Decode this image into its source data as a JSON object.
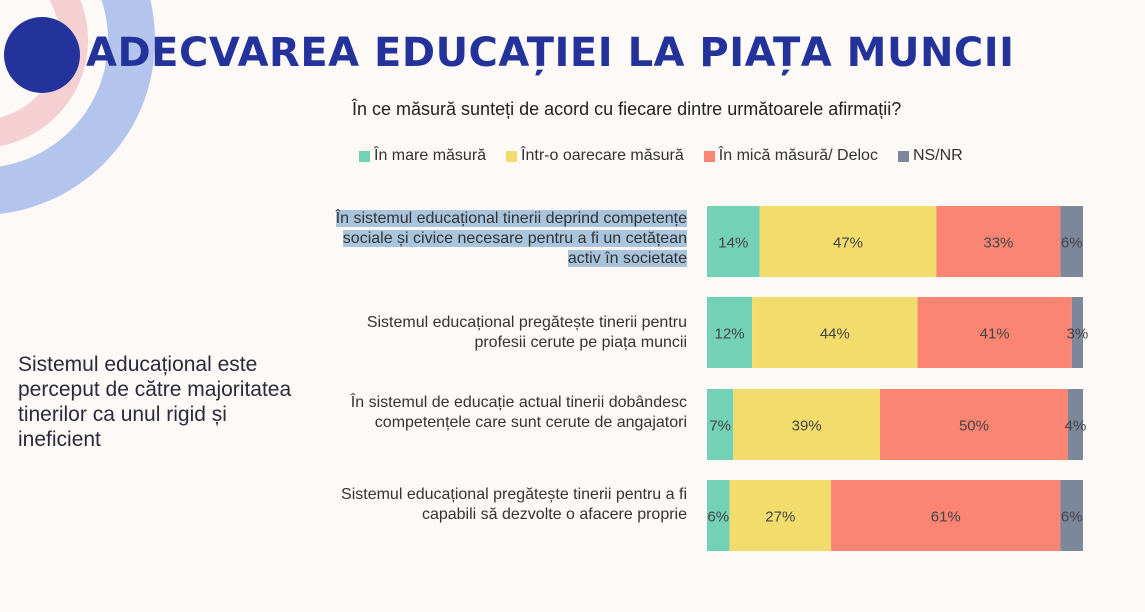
{
  "title": "ADECVAREA EDUCAȚIEI LA PIAȚA MUNCII",
  "subtitle": "În ce măsură sunteți de acord cu fiecare dintre următoarele afirmații?",
  "side_note": "Sistemul educațional este perceput de către majoritatea tinerilor ca unul rigid și ineficient",
  "colors": {
    "title": "#24339b",
    "background": "#fdf9f6",
    "deco_outer": "#b3c5ec",
    "deco_pink": "#f5d0d3",
    "deco_dot": "#24339b",
    "highlight": "#a9c4dd"
  },
  "chart_data": {
    "type": "bar",
    "orientation": "horizontal",
    "stacked": true,
    "normalized": true,
    "categories": [
      "În sistemul educațional tinerii deprind competențe sociale și civice necesare pentru a fi un cetățean activ în societate",
      "Sistemul educațional pregătește tinerii pentru profesii cerute pe piața muncii",
      "În sistemul de educație actual tinerii dobândesc competențele care sunt cerute de angajatori",
      "Sistemul educațional pregătește tinerii pentru a fi capabili să dezvolte o afacere proprie"
    ],
    "series": [
      {
        "name": "În mare măsură",
        "color": "#73d1b6",
        "values": [
          14,
          12,
          7,
          6
        ],
        "labels": [
          "14%",
          "12%",
          "7%",
          "6%"
        ]
      },
      {
        "name": "Într-o oarecare măsură",
        "color": "#f2dc6b",
        "values": [
          47,
          44,
          39,
          27
        ],
        "labels": [
          "47%",
          "44%",
          "39%",
          "27%"
        ]
      },
      {
        "name": "În mică măsură/ Deloc",
        "color": "#fa8573",
        "values": [
          33,
          41,
          50,
          61
        ],
        "labels": [
          "33%",
          "41%",
          "50%",
          "61%"
        ]
      },
      {
        "name": "NS/NR",
        "color": "#7d879a",
        "values": [
          6,
          3,
          4,
          6
        ],
        "labels": [
          "6%",
          "3%",
          "4%",
          "6%"
        ]
      }
    ],
    "legend_position": "top",
    "grid": false
  }
}
